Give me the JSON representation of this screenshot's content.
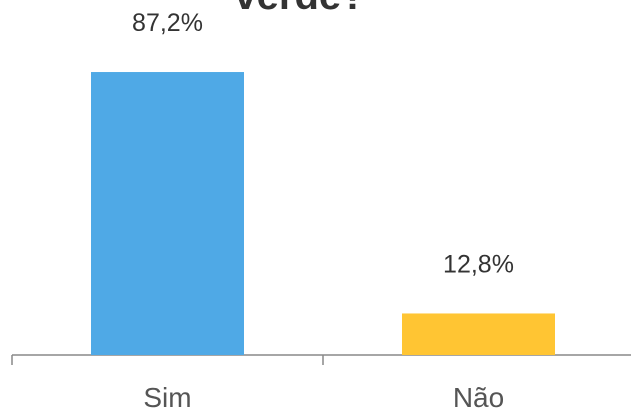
{
  "chart_data": {
    "type": "bar",
    "title": "verde?",
    "categories": [
      "Sim",
      "Não"
    ],
    "values": [
      87.2,
      12.8
    ],
    "value_labels": [
      "87,2%",
      "12,8%"
    ],
    "colors": [
      "#4fa9e6",
      "#ffc533"
    ]
  }
}
